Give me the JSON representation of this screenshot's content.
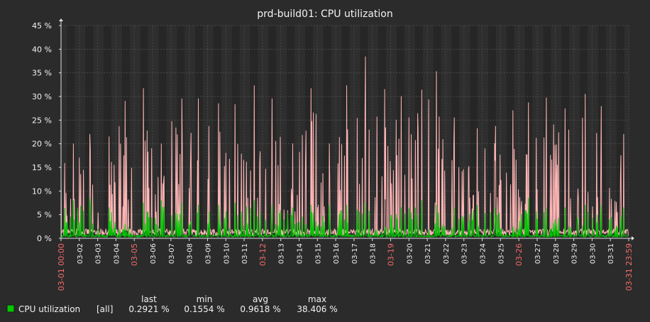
{
  "chart_data": {
    "type": "line",
    "title": "prd-build01: CPU utilization",
    "ylabel": "",
    "xlabel": "",
    "ylim": [
      0,
      45
    ],
    "yticks": [
      "0 %",
      "5 %",
      "10 %",
      "15 %",
      "20 %",
      "25 %",
      "30 %",
      "35 %",
      "40 %",
      "45 %"
    ],
    "xrange": [
      "03-01 00:00",
      "03-31 23:59"
    ],
    "x_tick_labels": [
      {
        "label": "03-01 00:00",
        "day": 0,
        "highlight": true
      },
      {
        "label": "03-02",
        "day": 1
      },
      {
        "label": "03-03",
        "day": 2
      },
      {
        "label": "03-04",
        "day": 3
      },
      {
        "label": "03-05",
        "day": 4,
        "highlight": true
      },
      {
        "label": "03-06",
        "day": 5
      },
      {
        "label": "03-07",
        "day": 6
      },
      {
        "label": "03-08",
        "day": 7
      },
      {
        "label": "03-09",
        "day": 8
      },
      {
        "label": "03-10",
        "day": 9
      },
      {
        "label": "03-11",
        "day": 10
      },
      {
        "label": "03-12",
        "day": 11,
        "highlight": true
      },
      {
        "label": "03-13",
        "day": 12
      },
      {
        "label": "03-14",
        "day": 13
      },
      {
        "label": "03-15",
        "day": 14
      },
      {
        "label": "03-16",
        "day": 15
      },
      {
        "label": "03-17",
        "day": 16
      },
      {
        "label": "03-18",
        "day": 17
      },
      {
        "label": "03-19",
        "day": 18,
        "highlight": true
      },
      {
        "label": "03-20",
        "day": 19
      },
      {
        "label": "03-21",
        "day": 20
      },
      {
        "label": "03-22",
        "day": 21
      },
      {
        "label": "03-23",
        "day": 22
      },
      {
        "label": "03-24",
        "day": 23
      },
      {
        "label": "03-25",
        "day": 24
      },
      {
        "label": "03-26",
        "day": 25,
        "highlight": true
      },
      {
        "label": "03-27",
        "day": 26
      },
      {
        "label": "03-28",
        "day": 27
      },
      {
        "label": "03-29",
        "day": 28
      },
      {
        "label": "03-30",
        "day": 29
      },
      {
        "label": "03-31",
        "day": 30
      },
      {
        "label": "03-31 23:59",
        "day": 31,
        "highlight": true
      }
    ],
    "grid": true,
    "series": [
      {
        "name": "CPU utilization",
        "color": "#00c800",
        "max_color": "#ffb6b6",
        "daily_max": [
          20.0,
          22.0,
          21.5,
          29.0,
          31.7,
          20.0,
          29.5,
          29.5,
          28.5,
          28.3,
          32.3,
          29.5,
          20.0,
          31.7,
          20.0,
          32.3,
          38.4,
          31.5,
          30.0,
          31.4,
          35.3,
          25.5,
          23.2,
          23.7,
          27.0,
          28.7,
          29.7,
          27.4,
          30.5,
          27.9,
          22.0
        ],
        "daily_avg_peak": [
          8.0,
          8.5,
          6.5,
          3.0,
          7.5,
          8.0,
          7.5,
          7.0,
          7.0,
          7.5,
          8.0,
          7.0,
          6.5,
          7.0,
          7.0,
          7.0,
          7.5,
          2.5,
          6.5,
          8.0,
          7.0,
          6.5,
          7.0,
          6.5,
          2.5,
          8.5,
          6.5,
          6.5,
          7.0,
          7.0,
          6.5
        ]
      }
    ]
  },
  "legend": {
    "headers": [
      "last",
      "min",
      "avg",
      "max"
    ],
    "items": [
      {
        "name": "CPU utilization",
        "scope": "[all]",
        "color": "#00c800",
        "last": "0.2921 %",
        "min": "0.1554 %",
        "avg": "0.9618 %",
        "max": "38.406 %"
      }
    ]
  }
}
